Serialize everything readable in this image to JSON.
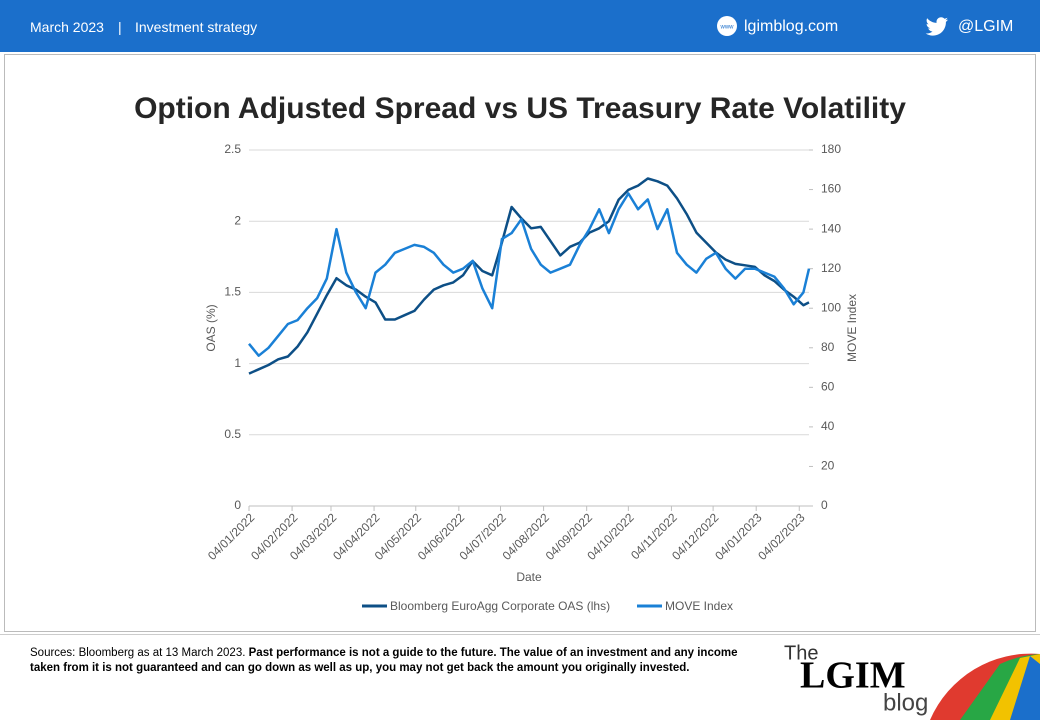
{
  "header": {
    "date": "March 2023",
    "separator": "|",
    "section": "Investment strategy",
    "site": "lgimblog.com",
    "handle": "@LGIM"
  },
  "footer": {
    "source": "Sources: Bloomberg as at 13 March 2023.",
    "disclaimer": "Past performance is not a guide to the future. The value of an investment and any income taken from it is not guaranteed and can go down as well as up, you may not get back the amount you originally invested.",
    "logo_the": "The",
    "logo_name": "LGIM",
    "logo_blog": "blog"
  },
  "chart_data": {
    "type": "line",
    "title": "Option Adjusted Spread vs US Treasury Rate Volatility",
    "x_label": "Date",
    "y_label": "OAS (%)",
    "y2_label": "MOVE Index",
    "x": [
      "2022-01-04",
      "2022-01-11",
      "2022-01-18",
      "2022-01-25",
      "2022-02-01",
      "2022-02-08",
      "2022-02-15",
      "2022-02-22",
      "2022-03-01",
      "2022-03-08",
      "2022-03-15",
      "2022-03-22",
      "2022-03-29",
      "2022-04-05",
      "2022-04-12",
      "2022-04-19",
      "2022-04-26",
      "2022-05-03",
      "2022-05-10",
      "2022-05-17",
      "2022-05-24",
      "2022-05-31",
      "2022-06-07",
      "2022-06-14",
      "2022-06-21",
      "2022-06-28",
      "2022-07-05",
      "2022-07-12",
      "2022-07-19",
      "2022-07-26",
      "2022-08-02",
      "2022-08-09",
      "2022-08-16",
      "2022-08-23",
      "2022-08-30",
      "2022-09-06",
      "2022-09-13",
      "2022-09-20",
      "2022-09-27",
      "2022-10-04",
      "2022-10-11",
      "2022-10-18",
      "2022-10-25",
      "2022-11-01",
      "2022-11-08",
      "2022-11-15",
      "2022-11-22",
      "2022-11-29",
      "2022-12-06",
      "2022-12-13",
      "2022-12-20",
      "2022-12-27",
      "2023-01-03",
      "2023-01-10",
      "2023-01-17",
      "2023-01-24",
      "2023-01-31",
      "2023-02-07",
      "2023-02-11"
    ],
    "series": [
      {
        "name": "Bloomberg EuroAgg Corporate OAS (lhs)",
        "color": "#0d4f86",
        "values": [
          0.93,
          0.96,
          0.99,
          1.03,
          1.05,
          1.12,
          1.22,
          1.35,
          1.48,
          1.6,
          1.55,
          1.52,
          1.47,
          1.43,
          1.31,
          1.31,
          1.34,
          1.37,
          1.45,
          1.52,
          1.55,
          1.57,
          1.62,
          1.72,
          1.65,
          1.62,
          1.85,
          2.1,
          2.02,
          1.95,
          1.96,
          1.86,
          1.76,
          1.82,
          1.85,
          1.92,
          1.95,
          2.0,
          2.15,
          2.22,
          2.25,
          2.3,
          2.28,
          2.25,
          2.16,
          2.05,
          1.92,
          1.85,
          1.78,
          1.73,
          1.7,
          1.69,
          1.68,
          1.62,
          1.58,
          1.52,
          1.47,
          1.41,
          1.43
        ]
      },
      {
        "name": "MOVE Index",
        "color": "#1a80d6",
        "axis": "y2",
        "values": [
          82,
          76,
          80,
          86,
          92,
          94,
          100,
          105,
          115,
          140,
          118,
          108,
          100,
          118,
          122,
          128,
          130,
          132,
          131,
          128,
          122,
          118,
          120,
          124,
          110,
          100,
          135,
          138,
          145,
          130,
          122,
          118,
          120,
          122,
          132,
          140,
          150,
          138,
          150,
          158,
          150,
          155,
          140,
          150,
          128,
          122,
          118,
          125,
          128,
          120,
          115,
          120,
          120,
          118,
          116,
          110,
          102,
          108,
          120
        ]
      }
    ],
    "xlim": [
      "2022-01-04",
      "2023-02-11"
    ],
    "xticks": [
      {
        "value": "2022-01-04",
        "label": "04/01/2022"
      },
      {
        "value": "2022-02-04",
        "label": "04/02/2022"
      },
      {
        "value": "2022-03-04",
        "label": "04/03/2022"
      },
      {
        "value": "2022-04-04",
        "label": "04/04/2022"
      },
      {
        "value": "2022-05-04",
        "label": "04/05/2022"
      },
      {
        "value": "2022-06-04",
        "label": "04/06/2022"
      },
      {
        "value": "2022-07-04",
        "label": "04/07/2022"
      },
      {
        "value": "2022-08-04",
        "label": "04/08/2022"
      },
      {
        "value": "2022-09-04",
        "label": "04/09/2022"
      },
      {
        "value": "2022-10-04",
        "label": "04/10/2022"
      },
      {
        "value": "2022-11-04",
        "label": "04/11/2022"
      },
      {
        "value": "2022-12-04",
        "label": "04/12/2022"
      },
      {
        "value": "2023-01-04",
        "label": "04/01/2023"
      },
      {
        "value": "2023-02-04",
        "label": "04/02/2023"
      }
    ],
    "ylim": [
      0,
      2.5
    ],
    "yticks": [
      0,
      0.5,
      1,
      1.5,
      2,
      2.5
    ],
    "y2lim": [
      0,
      180
    ],
    "y2ticks": [
      0,
      20,
      40,
      60,
      80,
      100,
      120,
      140,
      160,
      180
    ],
    "grid": true,
    "legend": "bottom"
  }
}
